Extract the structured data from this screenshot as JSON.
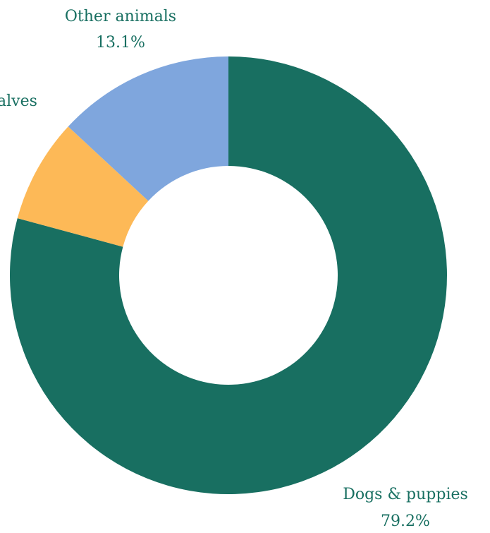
{
  "chart_data": {
    "type": "pie",
    "donut": true,
    "categories": [
      "Dogs & puppies",
      "Calves",
      "Other animals"
    ],
    "values": [
      79.2,
      7.7,
      13.1
    ],
    "value_labels": [
      "79.2%",
      "7.7%",
      "13.1%"
    ],
    "visible_labels": {
      "dogs_name": "Dogs & puppies",
      "dogs_value": "79.2%",
      "calves_name": "alves",
      "other_name": "Other animals",
      "other_value": "13.1%"
    },
    "colors": [
      "#186f61",
      "#fdb957",
      "#7fa6dd"
    ],
    "label_color": "#186f61",
    "legend": "none"
  }
}
